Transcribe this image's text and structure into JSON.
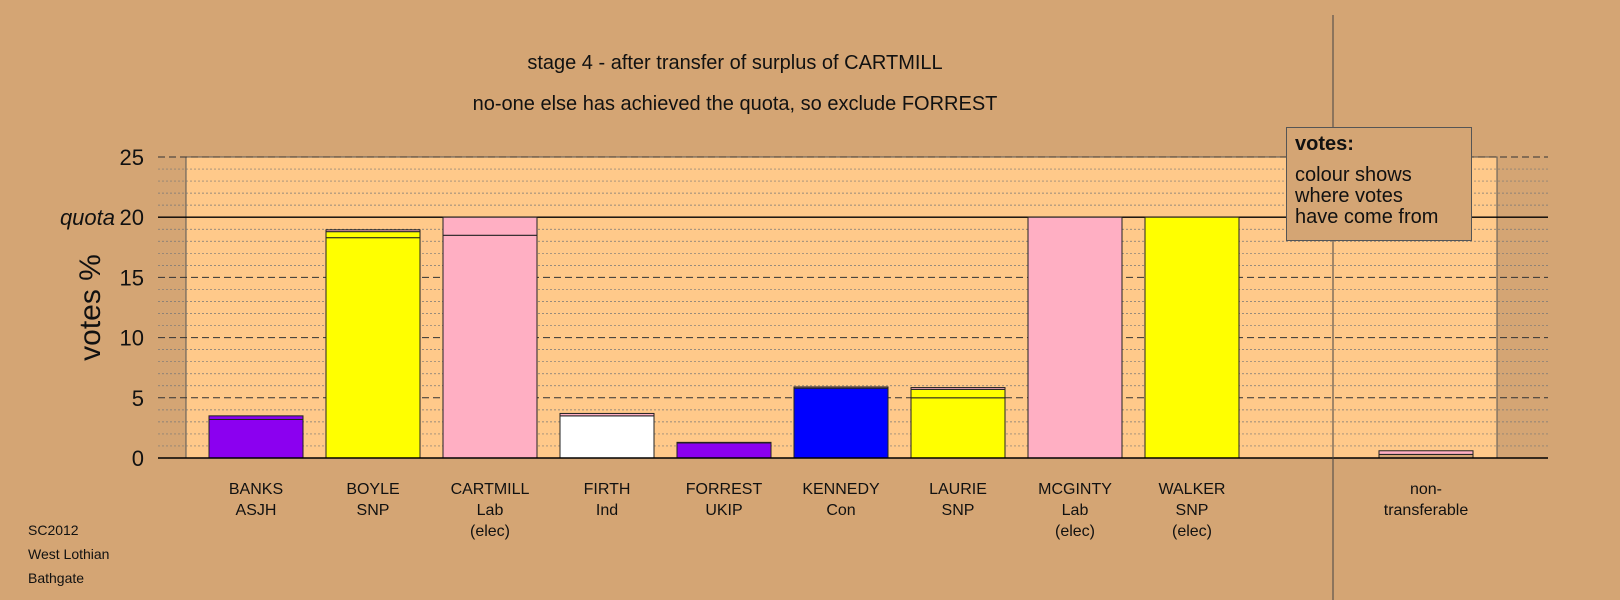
{
  "title_line1": "stage 4 - after transfer of surplus of CARTMILL",
  "title_line2": "no-one else has achieved the quota, so exclude FORREST",
  "footer": [
    "SC2012",
    "West Lothian",
    "Bathgate"
  ],
  "legend": {
    "title": "votes:",
    "text": "colour shows\nwhere votes\nhave come from"
  },
  "colors": {
    "background": "#d4a574",
    "plot_area": "#ffc98a",
    "ASJH": "#8b00f0",
    "SNP": "#ffff00",
    "Lab": "#ffafc3",
    "Ind": "#ffffff",
    "UKIP": "#8b00f0",
    "Con": "#0000ff"
  },
  "chart_data": {
    "type": "bar",
    "ylabel": "votes %",
    "quota_label": "quota",
    "quota": 20,
    "ylim": [
      0,
      25
    ],
    "yticks": [
      0,
      5,
      10,
      15,
      20,
      25
    ],
    "grid": true,
    "candidates": [
      {
        "name": "BANKS",
        "party": "ASJH",
        "elected": "",
        "color": "#8b00f0",
        "segments": [
          {
            "value": 3.2,
            "color": "#8b00f0"
          },
          {
            "value": 0.3,
            "color": "#8b00f0"
          }
        ]
      },
      {
        "name": "BOYLE",
        "party": "SNP",
        "elected": "",
        "color": "#ffff00",
        "segments": [
          {
            "value": 18.3,
            "color": "#ffff00"
          },
          {
            "value": 0.5,
            "color": "#ffff00"
          },
          {
            "value": 0.15,
            "color": "#ffafc3"
          }
        ]
      },
      {
        "name": "CARTMILL",
        "party": "Lab",
        "elected": "(elec)",
        "color": "#ffafc3",
        "segments": [
          {
            "value": 18.5,
            "color": "#ffafc3"
          },
          {
            "value": 1.5,
            "color": "#ffafc3"
          }
        ]
      },
      {
        "name": "FIRTH",
        "party": "Ind",
        "elected": "",
        "color": "#ffffff",
        "segments": [
          {
            "value": 3.5,
            "color": "#ffffff"
          },
          {
            "value": 0.2,
            "color": "#ffafc3"
          }
        ]
      },
      {
        "name": "FORREST",
        "party": "UKIP",
        "elected": "",
        "color": "#8b00f0",
        "segments": [
          {
            "value": 1.25,
            "color": "#8b00f0"
          },
          {
            "value": 0.05,
            "color": "#ffafc3"
          }
        ]
      },
      {
        "name": "KENNEDY",
        "party": "Con",
        "elected": "",
        "color": "#0000ff",
        "segments": [
          {
            "value": 5.8,
            "color": "#0000ff"
          },
          {
            "value": 0.1,
            "color": "#ffafc3"
          }
        ]
      },
      {
        "name": "LAURIE",
        "party": "SNP",
        "elected": "",
        "color": "#ffff00",
        "segments": [
          {
            "value": 5.0,
            "color": "#ffff00"
          },
          {
            "value": 0.7,
            "color": "#ffff00"
          },
          {
            "value": 0.15,
            "color": "#ffafc3"
          }
        ]
      },
      {
        "name": "MCGINTY",
        "party": "Lab",
        "elected": "(elec)",
        "color": "#ffafc3",
        "segments": [
          {
            "value": 20,
            "color": "#ffafc3"
          }
        ]
      },
      {
        "name": "WALKER",
        "party": "SNP",
        "elected": "(elec)",
        "color": "#ffff00",
        "segments": [
          {
            "value": 20,
            "color": "#ffff00"
          }
        ]
      }
    ],
    "non_transferable": {
      "label_line1": "non-",
      "label_line2": "transferable",
      "segments": [
        {
          "value": 0.3,
          "color": "#d4a574"
        },
        {
          "value": 0.3,
          "color": "#ffafc3"
        }
      ]
    }
  }
}
